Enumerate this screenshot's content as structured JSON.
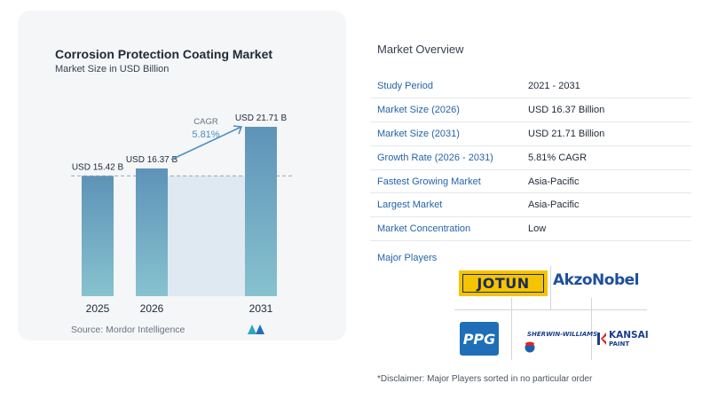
{
  "chart_data": {
    "type": "bar",
    "title": "Corrosion Protection Coating Market",
    "subtitle": "Market Size in USD Billion",
    "categories": [
      "2025",
      "2026",
      "2031"
    ],
    "values": [
      15.42,
      16.37,
      21.71
    ],
    "value_labels": [
      "USD 15.42 B",
      "USD 16.37 B",
      "USD 21.71 B"
    ],
    "cagr_label": "CAGR",
    "cagr_value": "5.81%",
    "source": "Source:  Mordor Intelligence",
    "bar_color": "#5e93b8",
    "bar_color_light": "#87c2cf",
    "band_color": "#dfe9f1",
    "arrow_color": "#4f8fc0",
    "grid": false
  },
  "overview": {
    "title": "Market Overview",
    "rows": [
      {
        "key": "Study Period",
        "value": "2021 - 2031"
      },
      {
        "key": "Market Size (2026)",
        "value": "USD 16.37 Billion"
      },
      {
        "key": "Market Size (2031)",
        "value": "USD 21.71 Billion"
      },
      {
        "key": "Growth Rate (2026 - 2031)",
        "value": "5.81% CAGR"
      },
      {
        "key": "Fastest Growing Market",
        "value": "Asia-Pacific"
      },
      {
        "key": "Largest Market",
        "value": "Asia-Pacific"
      },
      {
        "key": "Market Concentration",
        "value": "Low"
      }
    ]
  },
  "players": {
    "title": "Major Players",
    "logos": [
      {
        "name": "JOTUN",
        "icon": "jotun-logo"
      },
      {
        "name": "AkzoNobel",
        "icon": "akzonobel-logo"
      },
      {
        "name": "PPG",
        "icon": "ppg-logo"
      },
      {
        "name": "SHERWIN-WILLIAMS.",
        "icon": "sherwin-williams-logo"
      },
      {
        "name": "KANSAI",
        "sub": "PAINT",
        "icon": "kansai-paint-logo"
      }
    ],
    "disclaimer": "*Disclaimer: Major Players sorted in no particular order"
  }
}
